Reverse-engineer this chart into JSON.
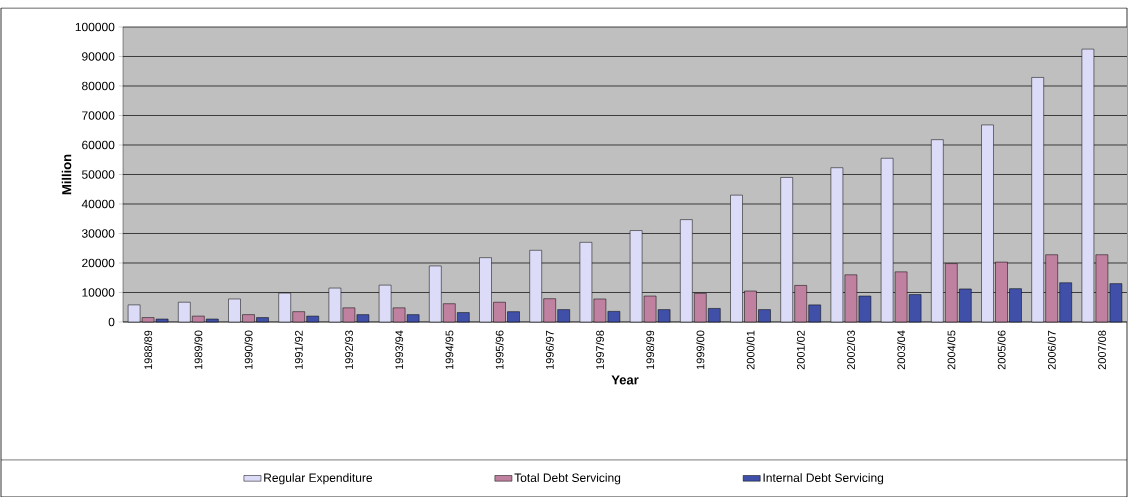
{
  "chart_data": {
    "type": "bar",
    "xlabel": "Year",
    "ylabel": "Million",
    "categories": [
      "1988/89",
      "1989/90",
      "1990/90",
      "1991/92",
      "1992/93",
      "1993/94",
      "1994/95",
      "1995/96",
      "1996/97",
      "1997/98",
      "1998/99",
      "1999/00",
      "2000/01",
      "2001/02",
      "2002/03",
      "2003/04",
      "2004/05",
      "2005/06",
      "2006/07",
      "2007/08"
    ],
    "series": [
      {
        "name": "Regular Expenditure",
        "color": "#dcdcf8",
        "values": [
          5800,
          6700,
          7800,
          9800,
          11500,
          12500,
          19000,
          21800,
          24300,
          27000,
          31000,
          34700,
          43000,
          49000,
          52300,
          55500,
          61800,
          66800,
          82900,
          92500
        ]
      },
      {
        "name": "Total Debt Servicing",
        "color": "#c080a0",
        "values": [
          1500,
          2000,
          2500,
          3500,
          4800,
          4800,
          6200,
          6700,
          7900,
          7800,
          8800,
          9700,
          10500,
          12400,
          16000,
          17000,
          19800,
          20300,
          22800,
          22800
        ]
      },
      {
        "name": "Internal Debt Servicing",
        "color": "#4050a8",
        "values": [
          1000,
          1000,
          1500,
          2000,
          2500,
          2500,
          3200,
          3500,
          4200,
          3600,
          4200,
          4600,
          4200,
          5800,
          8800,
          9300,
          11200,
          11300,
          13300,
          13000
        ]
      }
    ],
    "ylim": [
      0,
      100000
    ],
    "yticks": [
      0,
      10000,
      20000,
      30000,
      40000,
      50000,
      60000,
      70000,
      80000,
      90000,
      100000
    ],
    "grid": "y",
    "legend": "bottom"
  }
}
